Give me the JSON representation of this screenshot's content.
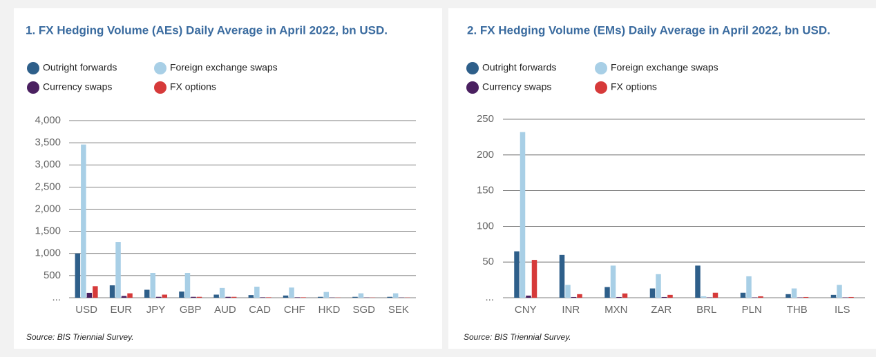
{
  "chart_data": [
    {
      "type": "bar",
      "title": "1. FX Hedging Volume (AEs) Daily Average in April 2022, bn USD.",
      "source": "Source: BIS Triennial Survey.",
      "categories": [
        "USD",
        "EUR",
        "JPY",
        "GBP",
        "AUD",
        "CAD",
        "CHF",
        "HKD",
        "SGD",
        "SEK"
      ],
      "series": [
        {
          "name": "Outright forwards",
          "color": "#2e5f8a",
          "values": [
            1000,
            280,
            180,
            140,
            70,
            60,
            50,
            20,
            20,
            20
          ]
        },
        {
          "name": "Foreign exchange swaps",
          "color": "#a8cfe6",
          "values": [
            3460,
            1260,
            560,
            560,
            220,
            250,
            230,
            130,
            100,
            100
          ]
        },
        {
          "name": "Currency swaps",
          "color": "#4a2060",
          "values": [
            110,
            40,
            20,
            20,
            20,
            10,
            10,
            5,
            5,
            5
          ]
        },
        {
          "name": "FX options",
          "color": "#d63a3a",
          "values": [
            260,
            100,
            70,
            20,
            20,
            10,
            10,
            5,
            5,
            5
          ]
        }
      ],
      "ylim": [
        0,
        4000
      ],
      "yticks": [
        {
          "value": 0,
          "label": "..."
        },
        500,
        {
          "value": 1000,
          "label": "1,000"
        },
        {
          "value": 1500,
          "label": "1,500"
        },
        {
          "value": 2000,
          "label": "2,000"
        },
        {
          "value": 2500,
          "label": "2,500"
        },
        {
          "value": 3000,
          "label": "3,000"
        },
        {
          "value": 3500,
          "label": "3,500"
        },
        {
          "value": 4000,
          "label": "4,000"
        }
      ],
      "grid": true,
      "legend": "top-left"
    },
    {
      "type": "bar",
      "title": "2. FX Hedging Volume (EMs) Daily Average in April 2022, bn USD.",
      "source": "Source: BIS Triennial Survey.",
      "categories": [
        "CNY",
        "INR",
        "MXN",
        "ZAR",
        "BRL",
        "PLN",
        "THB",
        "ILS"
      ],
      "series": [
        {
          "name": "Outright forwards",
          "color": "#2e5f8a",
          "values": [
            65,
            60,
            15,
            13,
            45,
            7,
            5,
            4
          ]
        },
        {
          "name": "Foreign exchange swaps",
          "color": "#a8cfe6",
          "values": [
            232,
            18,
            45,
            33,
            2,
            30,
            13,
            18
          ]
        },
        {
          "name": "Currency swaps",
          "color": "#4a2060",
          "values": [
            3,
            1,
            1,
            1,
            0.5,
            0.5,
            0.5,
            0.5
          ]
        },
        {
          "name": "FX options",
          "color": "#d63a3a",
          "values": [
            53,
            5,
            6,
            4,
            7,
            2,
            1,
            1
          ]
        }
      ],
      "ylim": [
        0,
        250
      ],
      "yticks": [
        {
          "value": 0,
          "label": "..."
        },
        50,
        100,
        150,
        200,
        250
      ],
      "grid": true,
      "legend": "top-left"
    }
  ]
}
